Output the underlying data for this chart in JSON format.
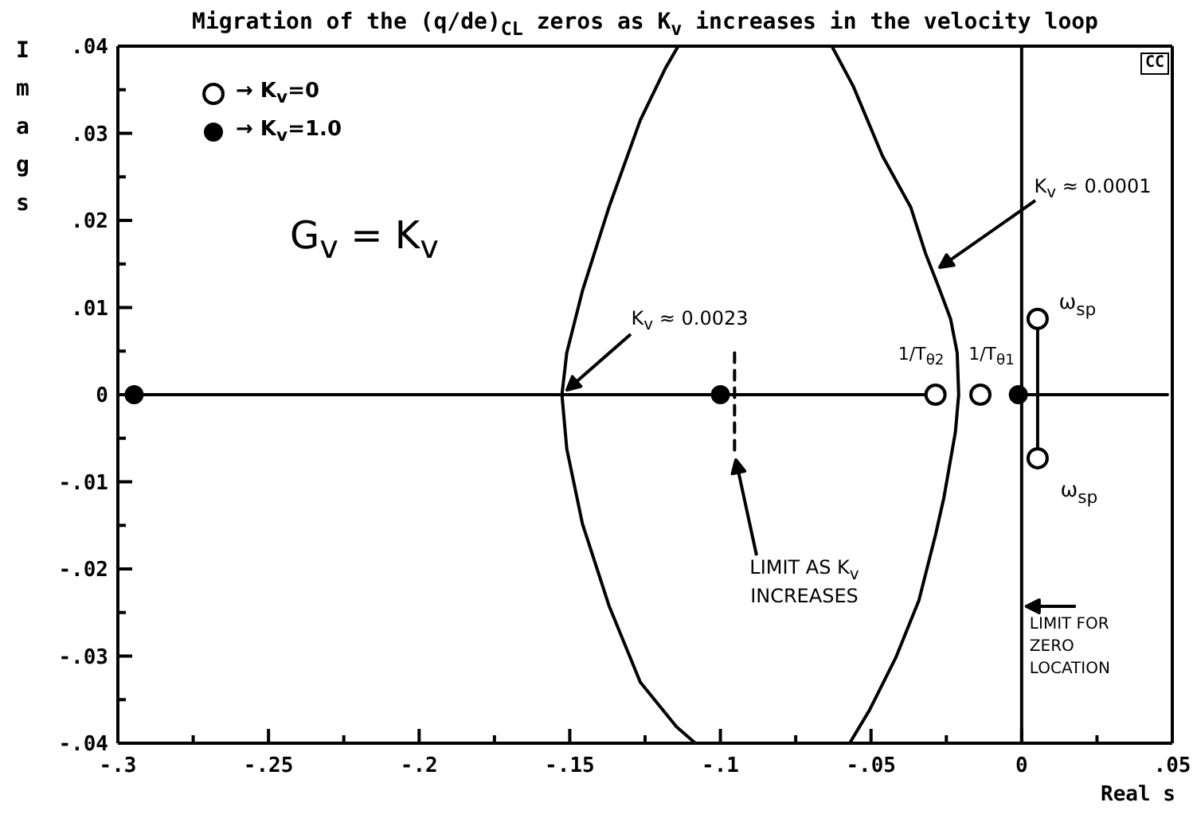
{
  "chart_data": {
    "type": "line",
    "title": "Migration of the (q/de)$_{CL}$ zeros as K$_{v}$ increases in the velocity loop",
    "xlabel": "Real s",
    "ylabel": "Imag s",
    "xlim": [
      -0.3,
      0.05
    ],
    "ylim": [
      -0.04,
      0.04
    ],
    "xticks": [
      {
        "value": -0.3,
        "label": "-.3"
      },
      {
        "value": -0.275,
        "label": null
      },
      {
        "value": -0.25,
        "label": "-.25"
      },
      {
        "value": -0.225,
        "label": null
      },
      {
        "value": -0.2,
        "label": "-.2"
      },
      {
        "value": -0.175,
        "label": null
      },
      {
        "value": -0.15,
        "label": "-.15"
      },
      {
        "value": -0.125,
        "label": null
      },
      {
        "value": -0.1,
        "label": "-.1"
      },
      {
        "value": -0.075,
        "label": null
      },
      {
        "value": -0.05,
        "label": "-.05"
      },
      {
        "value": -0.025,
        "label": null
      },
      0,
      {
        "value": 0.025,
        "label": null
      },
      {
        "value": 0.05,
        "label": ".05"
      }
    ],
    "yticks": [
      {
        "value": -0.04,
        "label": "-.04"
      },
      {
        "value": -0.035,
        "label": null
      },
      {
        "value": -0.03,
        "label": "-.03"
      },
      {
        "value": -0.025,
        "label": null
      },
      {
        "value": -0.02,
        "label": "-.02"
      },
      {
        "value": -0.015,
        "label": null
      },
      {
        "value": -0.01,
        "label": "-.01"
      },
      {
        "value": -0.005,
        "label": null
      },
      0,
      {
        "value": 0.005,
        "label": null
      },
      {
        "value": 0.01,
        "label": ".01"
      },
      {
        "value": 0.015,
        "label": null
      },
      {
        "value": 0.02,
        "label": ".02"
      },
      {
        "value": 0.025,
        "label": null
      },
      {
        "value": 0.03,
        "label": ".03"
      },
      {
        "value": 0.035,
        "label": null
      },
      {
        "value": 0.04,
        "label": ".04"
      }
    ],
    "legend": "top left",
    "annotations": [
      "G$_{v}$ = K$_{v}$",
      "K$_{v}$ ≈ 0.0001",
      "K$_{v}$ ≈ 0.0023",
      "LIMIT AS K$_{v}$ INCREASES",
      {
        "text": "1/T$_{θ2}$",
        "x": -0.0286,
        "y": 0
      },
      {
        "text": "1/T$_{θ1}$",
        "x": -0.0137,
        "y": 0
      },
      {
        "text": "ω$_{sp}$",
        "x": 0.0053,
        "y": 0.0087
      },
      {
        "text": "ω$_{sp}$",
        "x": 0.0053,
        "y": -0.0073
      },
      "CC"
    ],
    "ref_lines": [
      {
        "axis": "x",
        "value": 0,
        "label": "LIMIT FOR ZERO LOCATION"
      }
    ],
    "series": [
      {
        "color": "#000000",
        "marker": "none",
        "x": [
          -0.114,
          -0.1182,
          -0.1266,
          -0.137,
          -0.1458,
          -0.151,
          -0.1526,
          -0.151,
          -0.1458,
          -0.137,
          -0.1266,
          -0.1146,
          -0.1083
        ],
        "values": [
          0.04,
          0.0375,
          0.0315,
          0.0215,
          0.0119,
          0.0048,
          0,
          -0.0062,
          -0.0148,
          -0.0242,
          -0.033,
          -0.0381,
          -0.04
        ]
      },
      {
        "color": "#000000",
        "marker": "none",
        "x": [
          -0.063,
          -0.0559,
          -0.0462,
          -0.0368,
          -0.0319,
          -0.0275,
          -0.0236,
          -0.0214,
          -0.0209,
          -0.022,
          -0.0258,
          -0.0286,
          -0.0341,
          -0.0418,
          -0.0505,
          -0.0571
        ],
        "values": [
          0.04,
          0.0354,
          0.0274,
          0.0215,
          0.0162,
          0.0123,
          0.0087,
          0.0048,
          0,
          -0.0043,
          -0.0118,
          -0.0161,
          -0.0236,
          -0.0302,
          -0.0362,
          -0.04
        ]
      },
      {
        "color": "#000000",
        "marker": "none",
        "x": [
          -0.2946,
          -0.0286
        ],
        "values": [
          0,
          0
        ]
      },
      {
        "color": "#000000",
        "marker": "none",
        "x": [
          -0.0011,
          0.0484
        ],
        "values": [
          0,
          0
        ]
      },
      {
        "color": "#000000",
        "marker": "none",
        "x": [
          0.0053,
          0.0053
        ],
        "values": [
          0.0087,
          -0.0073
        ]
      },
      {
        "color": "#000000",
        "marker": "none",
        "line_style": "dashed",
        "x": [
          -0.0953,
          -0.0953
        ],
        "values": [
          0.0048,
          -0.0068
        ]
      },
      {
        "type": "scatter",
        "name": "→ K$_{v}$=0",
        "color": "#000000",
        "marker": "circle",
        "x": [
          -0.0286,
          -0.0137,
          0.0053,
          0.0053
        ],
        "values": [
          0,
          0,
          0.0087,
          -0.0073
        ]
      },
      {
        "type": "scatter",
        "name": "→ K$_{v}$=1.0",
        "color": "#000000",
        "marker": "circle",
        "x": [
          -0.2946,
          -0.1,
          -0.0011
        ],
        "values": [
          0,
          0,
          0
        ]
      }
    ]
  }
}
